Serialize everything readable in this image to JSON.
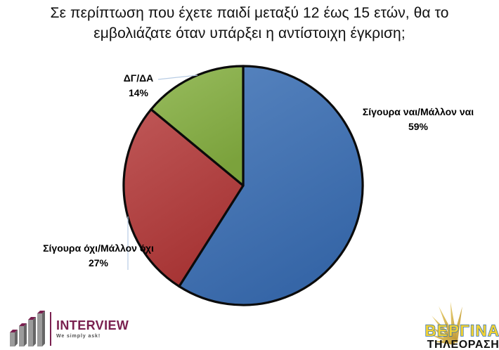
{
  "title": {
    "line1": "Σε περίπτωση που έχετε παιδί μεταξύ 12  έως 15 ετών, θα το",
    "line2": "εμβολιάζατε όταν υπάρξει η αντίστοιχη έγκριση;"
  },
  "chart_data": {
    "type": "pie",
    "title": "Σε περίπτωση που έχετε παιδί μεταξύ 12 έως 15 ετών, θα το εμβολιάζατε όταν υπάρξει η αντίστοιχη έγκριση;",
    "unit": "%",
    "start_angle_deg": 0,
    "direction": "clockwise",
    "labels_outside": true,
    "legend": "none",
    "slices": [
      {
        "key": "sigoura-nai",
        "label": "Σίγουρα ναι/Μάλλον ναι",
        "value": 59,
        "display": "59%",
        "color": "#3b6fb5"
      },
      {
        "key": "sigoura-ochi",
        "label": "Σίγουρα όχι/Μάλλον όχι",
        "value": 27,
        "display": "27%",
        "color": "#b43939"
      },
      {
        "key": "dg-da",
        "label": "ΔΓ/ΔΑ",
        "value": 14,
        "display": "14%",
        "color": "#86b041"
      }
    ],
    "leader_line_color": "#b8cce4",
    "outline_color": "#0b0b0b"
  },
  "footer": {
    "interview_logo": {
      "name": "INTERVIEW",
      "tagline": "We simply ask!",
      "brand_color": "#7a2150"
    },
    "vergina_logo": {
      "name": "ΒΕΡΓΙΝΑ",
      "subtitle": "ΤΗΛΕΟΡΑΣΗ",
      "sun_color": "#d2ab45",
      "name_fill": "#f2d235",
      "name_stroke": "#2a6cb5"
    }
  }
}
